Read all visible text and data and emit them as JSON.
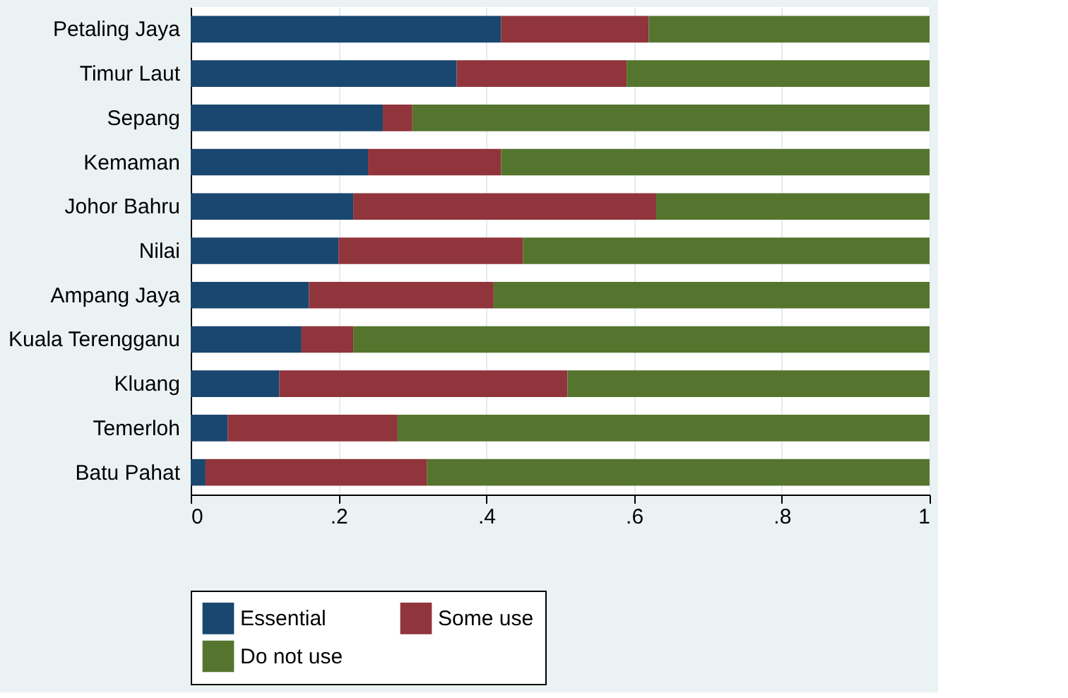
{
  "chart_data": {
    "type": "bar",
    "orientation": "horizontal",
    "stacked": true,
    "categories": [
      "Petaling Jaya",
      "Timur Laut",
      "Sepang",
      "Kemaman",
      "Johor Bahru",
      "Nilai",
      "Ampang Jaya",
      "Kuala Terengganu",
      "Kluang",
      "Temerloh",
      "Batu Pahat"
    ],
    "series": [
      {
        "name": "Essential",
        "color": "#1a476f",
        "values": [
          0.42,
          0.36,
          0.26,
          0.24,
          0.22,
          0.2,
          0.16,
          0.15,
          0.12,
          0.05,
          0.02
        ]
      },
      {
        "name": "Some use",
        "color": "#90353b",
        "values": [
          0.2,
          0.23,
          0.04,
          0.18,
          0.41,
          0.25,
          0.25,
          0.07,
          0.39,
          0.23,
          0.3
        ]
      },
      {
        "name": "Do not use",
        "color": "#55752f",
        "values": [
          0.38,
          0.41,
          0.7,
          0.58,
          0.37,
          0.55,
          0.59,
          0.78,
          0.49,
          0.72,
          0.68
        ]
      }
    ],
    "xlim": [
      0,
      1
    ],
    "xticks": [
      0,
      {
        "value": 0.2,
        "label": ".2"
      },
      {
        "value": 0.4,
        "label": ".4"
      },
      {
        "value": 0.6,
        "label": ".6"
      },
      {
        "value": 0.8,
        "label": ".8"
      },
      1
    ],
    "grid": "x",
    "legend": "bottom"
  }
}
